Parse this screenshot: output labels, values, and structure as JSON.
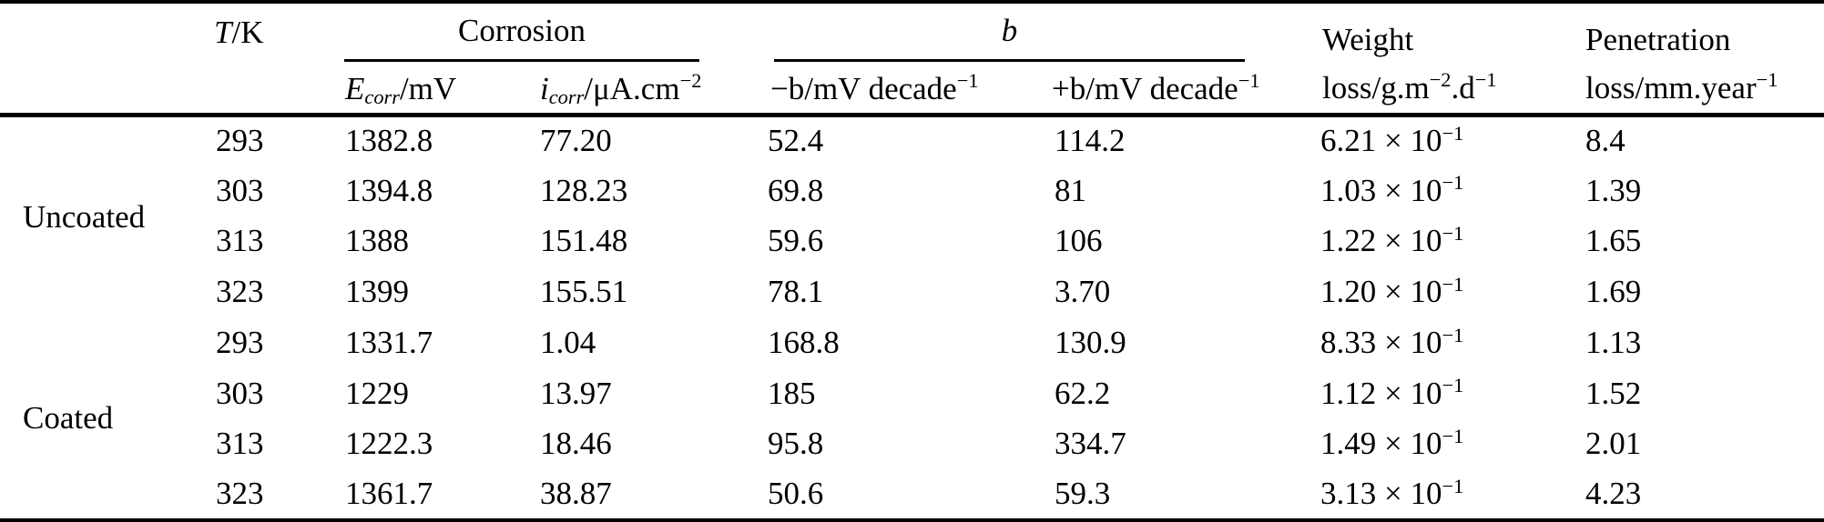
{
  "table": {
    "headers": {
      "t": "~{T}/K",
      "corrosion_group": "Corrosion",
      "b_group": "~{b}",
      "ecorr": "~{E}_{corr}/mV",
      "icorr": "~{i}_{corr}/μA.cm^{−2}",
      "neg_b": "−b/mV decade^{−1}",
      "pos_b": "+b/mV decade^{−1}",
      "weight_line1": "Weight",
      "weight_line2": "loss/g.m^{−2}.d^{−1}",
      "pen_line1": "Penetration",
      "pen_line2": "loss/mm.year^{−1}"
    },
    "groups": [
      {
        "label": "Uncoated"
      },
      {
        "label": "Coated"
      }
    ],
    "rows": [
      {
        "t": "293",
        "ecorr": "1382.8",
        "icorr": "77.20",
        "neg_b": "52.4",
        "pos_b": "114.2",
        "weight_loss": "6.21 × 10^{−1}",
        "pen_loss": "8.4"
      },
      {
        "t": "303",
        "ecorr": "1394.8",
        "icorr": "128.23",
        "neg_b": "69.8",
        "pos_b": "81",
        "weight_loss": "1.03 × 10^{−1}",
        "pen_loss": "1.39"
      },
      {
        "t": "313",
        "ecorr": "1388",
        "icorr": "151.48",
        "neg_b": "59.6",
        "pos_b": "106",
        "weight_loss": "1.22 × 10^{−1}",
        "pen_loss": "1.65"
      },
      {
        "t": "323",
        "ecorr": "1399",
        "icorr": "155.51",
        "neg_b": "78.1",
        "pos_b": "3.70",
        "weight_loss": "1.20 × 10^{−1}",
        "pen_loss": "1.69"
      },
      {
        "t": "293",
        "ecorr": "1331.7",
        "icorr": "1.04",
        "neg_b": "168.8",
        "pos_b": "130.9",
        "weight_loss": "8.33 × 10^{−1}",
        "pen_loss": "1.13"
      },
      {
        "t": "303",
        "ecorr": "1229",
        "icorr": "13.97",
        "neg_b": "185",
        "pos_b": "62.2",
        "weight_loss": "1.12 × 10^{−1}",
        "pen_loss": "1.52"
      },
      {
        "t": "313",
        "ecorr": "1222.3",
        "icorr": "18.46",
        "neg_b": "95.8",
        "pos_b": "334.7",
        "weight_loss": "1.49 × 10^{−1}",
        "pen_loss": "2.01"
      },
      {
        "t": "323",
        "ecorr": "1361.7",
        "icorr": "38.87",
        "neg_b": "50.6",
        "pos_b": "59.3",
        "weight_loss": "3.13 × 10^{−1}",
        "pen_loss": "4.23"
      }
    ]
  },
  "colors": {
    "text": "#000000",
    "rule": "#000000",
    "background": "#ffffff"
  }
}
